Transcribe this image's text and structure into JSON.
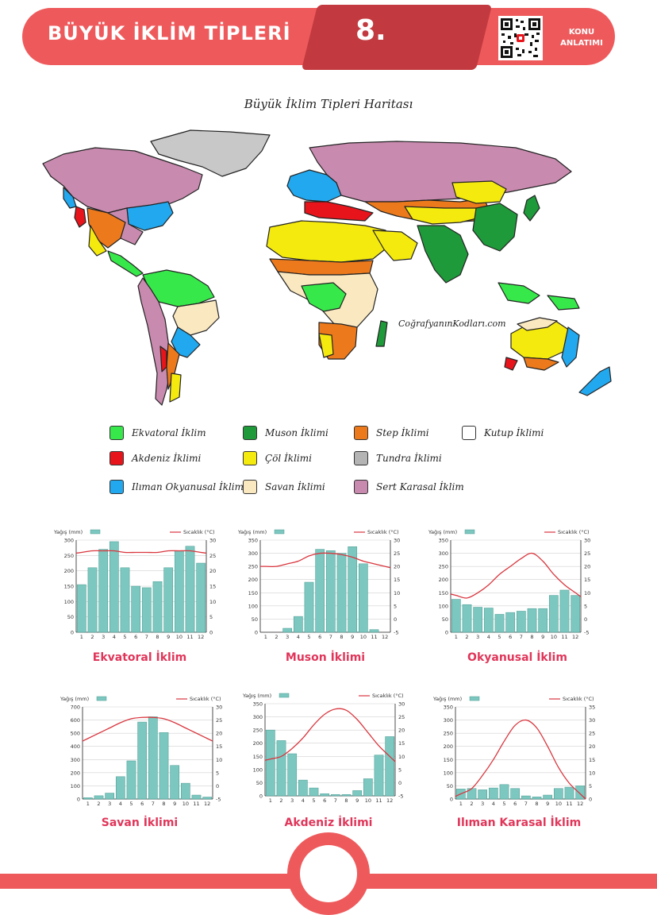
{
  "header": {
    "title": "BÜYÜK İKLİM TİPLERİ",
    "number": "8.",
    "konu_line1": "KONU",
    "konu_line2": "ANLATIMI"
  },
  "map": {
    "title": "Büyük İklim Tipleri Haritası",
    "watermark": "CoğrafyanınKodları.com"
  },
  "colors": {
    "header_red": "#ee5a5c",
    "header_dark": "#c23a3f",
    "chart_title": "#e0365a",
    "bar_fill": "#7cc8c0",
    "line_red": "#d9363e"
  },
  "legend": [
    {
      "label": "Ekvatoral İklim",
      "color": "#36e84a"
    },
    {
      "label": "Akdeniz İklimi",
      "color": "#e8141c"
    },
    {
      "label": "Ilıman Okyanusal İklim",
      "color": "#22a8ee"
    },
    {
      "label": "Muson İklimi",
      "color": "#1e9a3a"
    },
    {
      "label": "Çöl İklimi",
      "color": "#f5ea0e"
    },
    {
      "label": "Savan İklimi",
      "color": "#fae8c0"
    },
    {
      "label": "Step İklimi",
      "color": "#ec7a1c"
    },
    {
      "label": "Tundra İklimi",
      "color": "#b4b4b4"
    },
    {
      "label": "Sert Karasal İklim",
      "color": "#c88aae"
    },
    {
      "label": "Kutup İklimi",
      "color": "#ffffff"
    }
  ],
  "chart_data": [
    {
      "type": "bar",
      "title": "Ekvatoral İklim",
      "legend_left": "Yağış (mm)",
      "legend_right": "Sıcaklık (°C)",
      "categories": [
        "1",
        "2",
        "3",
        "4",
        "5",
        "6",
        "7",
        "8",
        "9",
        "10",
        "11",
        "12"
      ],
      "values": [
        155,
        210,
        270,
        295,
        210,
        150,
        145,
        165,
        210,
        265,
        280,
        225
      ],
      "temperature": [
        26,
        26.5,
        26.5,
        26.5,
        26,
        26,
        26,
        26,
        26.5,
        26.5,
        26.5,
        26
      ],
      "ylim": [
        0,
        300
      ],
      "ylim_right": [
        0,
        30
      ],
      "yticks": [
        0,
        50,
        100,
        150,
        200,
        250,
        300
      ],
      "yticks_right": [
        0,
        5,
        10,
        15,
        20,
        25,
        30
      ]
    },
    {
      "type": "bar",
      "title": "Muson İklimi",
      "legend_left": "Yağış (mm)",
      "legend_right": "Sıcaklık (°C)",
      "categories": [
        "1",
        "2",
        "3",
        "4",
        "5",
        "6",
        "7",
        "8",
        "9",
        "10",
        "11",
        "12"
      ],
      "values": [
        0,
        0,
        15,
        60,
        190,
        315,
        310,
        300,
        325,
        260,
        10,
        0
      ],
      "temperature": [
        20,
        20,
        21,
        22,
        24,
        25,
        25,
        24.5,
        23.5,
        22,
        21,
        20
      ],
      "ylim": [
        0,
        350
      ],
      "ylim_right": [
        -5,
        30
      ],
      "yticks": [
        0,
        50,
        100,
        150,
        200,
        250,
        300,
        350
      ],
      "yticks_right": [
        -5,
        0,
        5,
        10,
        15,
        20,
        25,
        30
      ]
    },
    {
      "type": "bar",
      "title": "Okyanusal İklim",
      "legend_left": "Yağış (mm)",
      "legend_right": "Sıcaklık (°C)",
      "categories": [
        "1",
        "2",
        "3",
        "4",
        "5",
        "6",
        "7",
        "8",
        "9",
        "10",
        "11",
        "12"
      ],
      "values": [
        125,
        105,
        95,
        92,
        68,
        75,
        80,
        90,
        90,
        140,
        160,
        140
      ],
      "temperature": [
        9,
        8,
        10,
        13,
        17,
        20,
        23,
        25,
        22,
        17,
        13,
        10
      ],
      "ylim": [
        0,
        350
      ],
      "ylim_right": [
        -5,
        30
      ],
      "yticks": [
        0,
        50,
        100,
        150,
        200,
        250,
        300,
        350
      ],
      "yticks_right": [
        -5,
        0,
        5,
        10,
        15,
        20,
        25,
        30
      ]
    },
    {
      "type": "bar",
      "title": "Savan İklimi",
      "legend_left": "Yağış (mm)",
      "legend_right": "Sıcaklık (°C)",
      "categories": [
        "1",
        "2",
        "3",
        "4",
        "5",
        "6",
        "7",
        "8",
        "9",
        "10",
        "11",
        "12"
      ],
      "values": [
        10,
        25,
        45,
        170,
        290,
        585,
        625,
        505,
        255,
        120,
        30,
        15
      ],
      "temperature": [
        18,
        20,
        22,
        24,
        25.5,
        26,
        26,
        25.5,
        24,
        22,
        20,
        18
      ],
      "ylim": [
        0,
        700
      ],
      "ylim_right": [
        -5,
        30
      ],
      "yticks": [
        0,
        100,
        200,
        300,
        400,
        500,
        600,
        700
      ],
      "yticks_right": [
        -5,
        0,
        5,
        10,
        15,
        20,
        25,
        30
      ]
    },
    {
      "type": "bar",
      "title": "Akdeniz İklimi",
      "legend_left": "Yağış (mm)",
      "legend_right": "Sıcaklık (°C)",
      "categories": [
        "1",
        "2",
        "3",
        "4",
        "5",
        "6",
        "7",
        "8",
        "9",
        "10",
        "11",
        "12"
      ],
      "values": [
        250,
        210,
        160,
        60,
        30,
        8,
        5,
        5,
        20,
        65,
        155,
        225
      ],
      "temperature": [
        9,
        10,
        13,
        17,
        22,
        26,
        28,
        27.5,
        24,
        19,
        14,
        10
      ],
      "ylim": [
        0,
        350
      ],
      "ylim_right": [
        -5,
        30
      ],
      "yticks": [
        0,
        50,
        100,
        150,
        200,
        250,
        300,
        350
      ],
      "yticks_right": [
        -5,
        0,
        5,
        10,
        15,
        20,
        25,
        30
      ]
    },
    {
      "type": "bar",
      "title": "Ilıman Karasal İklim",
      "legend_left": "Yağış (mm)",
      "legend_right": "Sıcaklık (°C)",
      "categories": [
        "1",
        "2",
        "3",
        "4",
        "5",
        "6",
        "7",
        "8",
        "9",
        "10",
        "11",
        "12"
      ],
      "values": [
        38,
        40,
        35,
        42,
        55,
        40,
        12,
        8,
        15,
        40,
        45,
        50
      ],
      "temperature": [
        2,
        4,
        9,
        15,
        22,
        28,
        30,
        27,
        20,
        12,
        6,
        2
      ],
      "ylim": [
        0,
        350
      ],
      "ylim_right": [
        0,
        35
      ],
      "yticks": [
        0,
        50,
        100,
        150,
        200,
        250,
        300,
        350
      ],
      "yticks_right": [
        0,
        5,
        10,
        15,
        20,
        25,
        30,
        35
      ]
    }
  ]
}
